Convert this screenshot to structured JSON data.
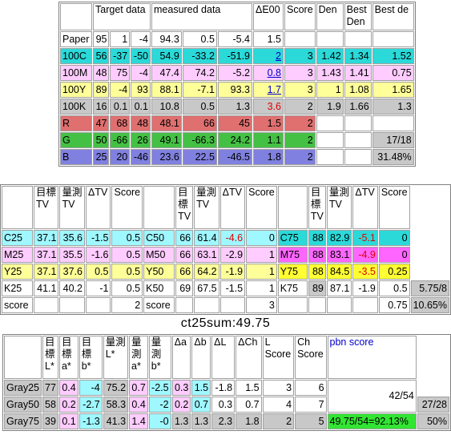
{
  "colors": {
    "cyan": "#2bd9d9",
    "light_cyan": "#9ff7ff",
    "magenta": "#ffccff",
    "yellow": "#ffff99",
    "gray": "#c8c8c8",
    "red": "#e07070",
    "green": "#44c144",
    "blue": "#8080e0",
    "pbn_green": "#33e533"
  },
  "t1": {
    "headers": [
      "",
      "Target data",
      "measured data",
      "ΔE00",
      "Score",
      "Den",
      "Best Den",
      "Best de"
    ],
    "rows": [
      {
        "name": "Paper",
        "t": [
          "95",
          "1",
          "-4"
        ],
        "m": [
          "94.3",
          "0.5",
          "-5.4"
        ],
        "de": "1.5",
        "score": "",
        "den": "",
        "bden": "",
        "bde": ""
      },
      {
        "name": "100C",
        "t": [
          "56",
          "-37",
          "-50"
        ],
        "m": [
          "54.9",
          "-33.2",
          "-51.9"
        ],
        "de": "2",
        "score": "3",
        "den": "1.42",
        "bden": "1.34",
        "bde": "1.52"
      },
      {
        "name": "100M",
        "t": [
          "48",
          "75",
          "-4"
        ],
        "m": [
          "47.4",
          "74.2",
          "-5.2"
        ],
        "de": "0.8",
        "score": "3",
        "den": "1.43",
        "bden": "1.41",
        "bde": "0.75"
      },
      {
        "name": "100Y",
        "t": [
          "89",
          "-4",
          "93"
        ],
        "m": [
          "88.1",
          "-7.1",
          "93.3"
        ],
        "de": "1.7",
        "score": "3",
        "den": "1",
        "bden": "1.08",
        "bde": "1.65"
      },
      {
        "name": "100K",
        "t": [
          "16",
          "0.1",
          "0.1"
        ],
        "m": [
          "10.8",
          "0.5",
          "1.3"
        ],
        "de": "3.6",
        "score": "2",
        "den": "1.9",
        "bden": "1.66",
        "bde": "1.3"
      },
      {
        "name": "R",
        "t": [
          "47",
          "68",
          "48"
        ],
        "m": [
          "48.1",
          "66",
          "45"
        ],
        "de": "1.5",
        "score": "2",
        "den": "",
        "bden": "",
        "bde": ""
      },
      {
        "name": "G",
        "t": [
          "50",
          "-66",
          "26"
        ],
        "m": [
          "49.1",
          "-66.3",
          "24.2"
        ],
        "de": "1.1",
        "score": "2",
        "den": "",
        "bden": "",
        "bde": "17/18"
      },
      {
        "name": "B",
        "t": [
          "25",
          "20",
          "-46"
        ],
        "m": [
          "23.6",
          "22.5",
          "-46.5"
        ],
        "de": "1.8",
        "score": "2",
        "den": "",
        "bden": "",
        "bde": "31.48%"
      }
    ]
  },
  "t2": {
    "headers": [
      "",
      "目標TV",
      "量測TV",
      "ΔTV",
      "Score"
    ],
    "rows": [
      [
        {
          "n": "C25",
          "t": "37.1",
          "m": "35.6",
          "d": "-1.5",
          "s": "0.5"
        },
        {
          "n": "C50",
          "t": "66",
          "m": "61.4",
          "d": "-4.6",
          "s": "0"
        },
        {
          "n": "C75",
          "t": "88",
          "m": "82.9",
          "d": "-5.1",
          "s": "0"
        }
      ],
      [
        {
          "n": "M25",
          "t": "37.1",
          "m": "35.5",
          "d": "-1.6",
          "s": "0.5"
        },
        {
          "n": "M50",
          "t": "66",
          "m": "63.1",
          "d": "-2.9",
          "s": "1"
        },
        {
          "n": "M75",
          "t": "88",
          "m": "83.1",
          "d": "-4.9",
          "s": "0"
        }
      ],
      [
        {
          "n": "Y25",
          "t": "37.1",
          "m": "37.6",
          "d": "0.5",
          "s": "0.5"
        },
        {
          "n": "Y50",
          "t": "66",
          "m": "64.2",
          "d": "-1.9",
          "s": "1"
        },
        {
          "n": "Y75",
          "t": "88",
          "m": "84.5",
          "d": "-3.5",
          "s": "0.25"
        }
      ],
      [
        {
          "n": "K25",
          "t": "41.1",
          "m": "40.2",
          "d": "-1",
          "s": "0.5"
        },
        {
          "n": "K50",
          "t": "69",
          "m": "67.5",
          "d": "-1.5",
          "s": "1"
        },
        {
          "n": "K75",
          "t": "89",
          "m": "87.1",
          "d": "-1.9",
          "s": "0.5"
        }
      ]
    ],
    "score_row": {
      "label": "score",
      "s1": "2",
      "s2": "3",
      "s3": "0.75"
    },
    "extra": {
      "frac": "5.75/8",
      "pct": "10.65%"
    }
  },
  "title": "ct25sum:49.75",
  "t3": {
    "headers": [
      "",
      "目標L*",
      "目標a*",
      "目標b*",
      "量測L*",
      "量測a*",
      "量測b*",
      "Δa",
      "Δb",
      "ΔL",
      "ΔCh",
      "L Score",
      "Ch Score",
      "pbn score",
      ""
    ],
    "rows": [
      {
        "n": "Gray25",
        "v": [
          "77",
          "0.4",
          "-4",
          "75.2",
          "0.7",
          "-2.5",
          "0.3",
          "1.5",
          "-1.8",
          "1.5",
          "3",
          "6"
        ]
      },
      {
        "n": "Gray50",
        "v": [
          "58",
          "0.2",
          "-2.7",
          "58.3",
          "0.4",
          "-2",
          "0.2",
          "0.7",
          "0.3",
          "0.7",
          "4",
          "7"
        ]
      },
      {
        "n": "Gray75",
        "v": [
          "39",
          "0.1",
          "-1.3",
          "41.3",
          "1.4",
          "-0",
          "1.3",
          "1.3",
          "2.3",
          "1.8",
          "2",
          "5"
        ]
      }
    ],
    "pbn": {
      "frac": "42/54",
      "frac2": "27/28",
      "total": "49.75/54=92.13%",
      "pct": "50%"
    }
  }
}
